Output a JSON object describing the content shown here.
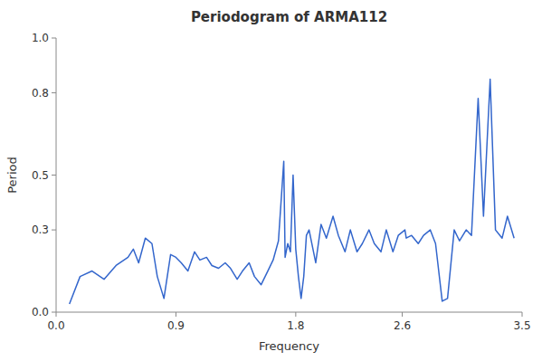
{
  "chart_data": {
    "type": "line",
    "title": "Periodogram of ARMA112",
    "x_label": "Frequency",
    "y_label": "Period",
    "xlim": [
      0.0,
      3.5
    ],
    "ylim": [
      0.0,
      1.0
    ],
    "xticks": [
      {
        "value": 0,
        "label": "0.0"
      },
      0.9,
      1.8,
      2.6,
      3.5
    ],
    "yticks": [
      {
        "value": 0,
        "label": "0.0"
      },
      0.3,
      0.5,
      0.8,
      {
        "value": 1,
        "label": "1.0"
      }
    ],
    "grid": false,
    "x": [
      0.1,
      0.18,
      0.27,
      0.36,
      0.45,
      0.54,
      0.58,
      0.62,
      0.67,
      0.72,
      0.76,
      0.81,
      0.86,
      0.9,
      0.94,
      0.99,
      1.04,
      1.08,
      1.13,
      1.17,
      1.22,
      1.27,
      1.31,
      1.36,
      1.4,
      1.45,
      1.49,
      1.54,
      1.59,
      1.63,
      1.67,
      1.71,
      1.72,
      1.74,
      1.76,
      1.78,
      1.8,
      1.82,
      1.84,
      1.86,
      1.88,
      1.9,
      1.95,
      1.99,
      2.03,
      2.08,
      2.12,
      2.17,
      2.21,
      2.26,
      2.3,
      2.35,
      2.39,
      2.44,
      2.48,
      2.53,
      2.57,
      2.62,
      2.63,
      2.67,
      2.72,
      2.76,
      2.81,
      2.85,
      2.9,
      2.94,
      2.99,
      3.03,
      3.08,
      3.12,
      3.17,
      3.21,
      3.26,
      3.3,
      3.35,
      3.39,
      3.44
    ],
    "values": [
      0.03,
      0.13,
      0.15,
      0.12,
      0.17,
      0.2,
      0.23,
      0.18,
      0.27,
      0.25,
      0.13,
      0.05,
      0.21,
      0.2,
      0.18,
      0.15,
      0.22,
      0.19,
      0.2,
      0.17,
      0.16,
      0.18,
      0.16,
      0.12,
      0.15,
      0.18,
      0.13,
      0.1,
      0.15,
      0.19,
      0.26,
      0.55,
      0.2,
      0.25,
      0.22,
      0.5,
      0.23,
      0.13,
      0.05,
      0.13,
      0.28,
      0.3,
      0.18,
      0.32,
      0.27,
      0.35,
      0.28,
      0.22,
      0.3,
      0.22,
      0.25,
      0.3,
      0.25,
      0.22,
      0.3,
      0.22,
      0.28,
      0.3,
      0.27,
      0.28,
      0.25,
      0.28,
      0.3,
      0.25,
      0.04,
      0.05,
      0.3,
      0.26,
      0.3,
      0.28,
      0.78,
      0.35,
      0.85,
      0.3,
      0.27,
      0.35,
      0.27
    ]
  }
}
